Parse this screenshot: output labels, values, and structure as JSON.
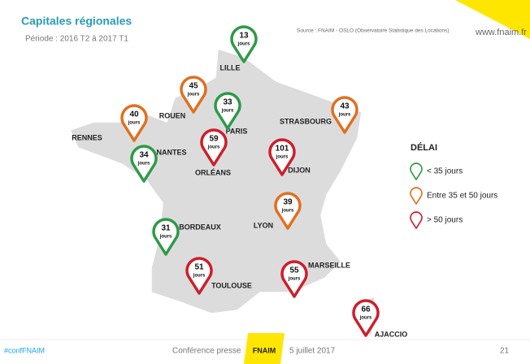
{
  "header": {
    "title": "Capitales régionales",
    "subtitle": "Période : 2016 T2 à 2017 T1",
    "source": "Source : FNAIM - OSLO (Observatoire Statistique des Locations)",
    "website": "www.fnaim.fr"
  },
  "unit": "jours",
  "cities": [
    {
      "name": "LILLE",
      "value": 13,
      "color": "#2e9a47"
    },
    {
      "name": "ROUEN",
      "value": 45,
      "color": "#e07020"
    },
    {
      "name": "PARIS",
      "value": 33,
      "color": "#2e9a47"
    },
    {
      "name": "STRASBOURG",
      "value": 43,
      "color": "#e07020"
    },
    {
      "name": "RENNES",
      "value": 40,
      "color": "#e07020"
    },
    {
      "name": "NANTES",
      "value": 34,
      "color": "#2e9a47"
    },
    {
      "name": "ORLÉANS",
      "value": 59,
      "color": "#cc1f2b"
    },
    {
      "name": "DIJON",
      "value": 101,
      "color": "#cc1f2b"
    },
    {
      "name": "LYON",
      "value": 39,
      "color": "#e07020"
    },
    {
      "name": "BORDEAUX",
      "value": 31,
      "color": "#2e9a47"
    },
    {
      "name": "TOULOUSE",
      "value": 51,
      "color": "#cc1f2b"
    },
    {
      "name": "MARSEILLE",
      "value": 55,
      "color": "#cc1f2b"
    },
    {
      "name": "AJACCIO",
      "value": 66,
      "color": "#cc1f2b"
    }
  ],
  "legend": {
    "title": "DÉLAI",
    "items": [
      {
        "label": "< 35 jours",
        "color": "#2e9a47"
      },
      {
        "label": "Entre 35 et 50 jours",
        "color": "#e07020"
      },
      {
        "label": "> 50 jours",
        "color": "#cc1f2b"
      }
    ]
  },
  "footer": {
    "hashtag": "#confFNAIM",
    "event": "Conférence presse",
    "logo": "FNAIM",
    "date": "5 juillet 2017",
    "page": 21
  }
}
